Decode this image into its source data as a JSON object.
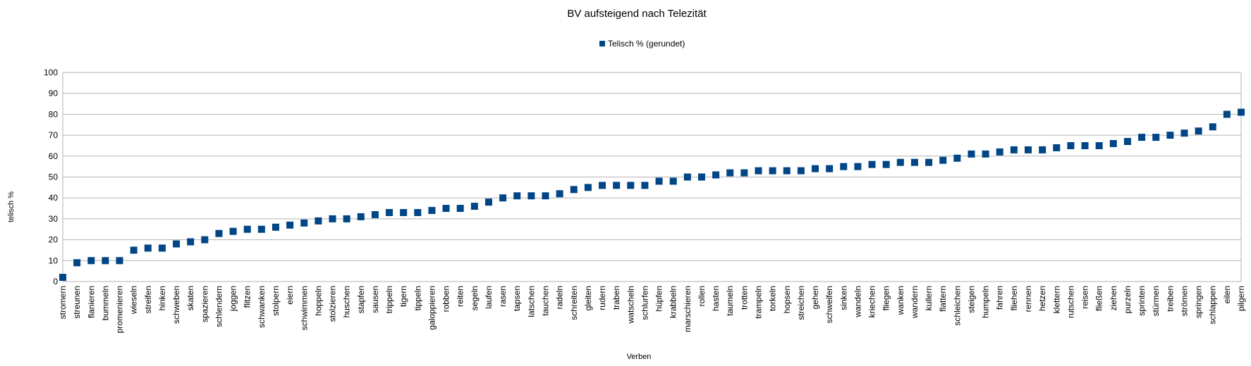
{
  "chart_data": {
    "type": "scatter",
    "title": "BV aufsteigend nach Telezität",
    "xlabel": "Verben",
    "ylabel": "telisch %",
    "ylim": [
      0,
      100
    ],
    "yticks": [
      0,
      10,
      20,
      30,
      40,
      50,
      60,
      70,
      80,
      90,
      100
    ],
    "grid": true,
    "legend_position": "top-center",
    "series": [
      {
        "name": "Telisch % (gerundet)",
        "color": "#004586",
        "marker": "square",
        "points": [
          {
            "x": "stromern",
            "y": 2
          },
          {
            "x": "streunen",
            "y": 9
          },
          {
            "x": "flanieren",
            "y": 10
          },
          {
            "x": "bummeln",
            "y": 10
          },
          {
            "x": "promenieren",
            "y": 10
          },
          {
            "x": "wieseln",
            "y": 15
          },
          {
            "x": "streifen",
            "y": 16
          },
          {
            "x": "hinken",
            "y": 16
          },
          {
            "x": "schweben",
            "y": 18
          },
          {
            "x": "skaten",
            "y": 19
          },
          {
            "x": "spazieren",
            "y": 20
          },
          {
            "x": "schlendern",
            "y": 23
          },
          {
            "x": "joggen",
            "y": 24
          },
          {
            "x": "flitzen",
            "y": 25
          },
          {
            "x": "schwanken",
            "y": 25
          },
          {
            "x": "stolpern",
            "y": 26
          },
          {
            "x": "eiern",
            "y": 27
          },
          {
            "x": "schwimmen",
            "y": 28
          },
          {
            "x": "hoppeln",
            "y": 29
          },
          {
            "x": "stolzieren",
            "y": 30
          },
          {
            "x": "huschen",
            "y": 30
          },
          {
            "x": "stapfen",
            "y": 31
          },
          {
            "x": "sausen",
            "y": 32
          },
          {
            "x": "trippeln",
            "y": 33
          },
          {
            "x": "tigern",
            "y": 33
          },
          {
            "x": "tippeln",
            "y": 33
          },
          {
            "x": "galoppieren",
            "y": 34
          },
          {
            "x": "robben",
            "y": 35
          },
          {
            "x": "reiten",
            "y": 35
          },
          {
            "x": "segeln",
            "y": 36
          },
          {
            "x": "laufen",
            "y": 38
          },
          {
            "x": "rasen",
            "y": 40
          },
          {
            "x": "tapsen",
            "y": 41
          },
          {
            "x": "latschen",
            "y": 41
          },
          {
            "x": "tauchen",
            "y": 41
          },
          {
            "x": "radeln",
            "y": 42
          },
          {
            "x": "schreiten",
            "y": 44
          },
          {
            "x": "gleiten",
            "y": 45
          },
          {
            "x": "rudern",
            "y": 46
          },
          {
            "x": "traben",
            "y": 46
          },
          {
            "x": "watscheln",
            "y": 46
          },
          {
            "x": "schlurfen",
            "y": 46
          },
          {
            "x": "hüpfen",
            "y": 48
          },
          {
            "x": "krabbeln",
            "y": 48
          },
          {
            "x": "marschieren",
            "y": 50
          },
          {
            "x": "rollen",
            "y": 50
          },
          {
            "x": "hasten",
            "y": 51
          },
          {
            "x": "taumeln",
            "y": 52
          },
          {
            "x": "trotten",
            "y": 52
          },
          {
            "x": "trampeln",
            "y": 53
          },
          {
            "x": "torkeln",
            "y": 53
          },
          {
            "x": "hopsen",
            "y": 53
          },
          {
            "x": "streichen",
            "y": 53
          },
          {
            "x": "gehen",
            "y": 54
          },
          {
            "x": "schweifen",
            "y": 54
          },
          {
            "x": "sinken",
            "y": 55
          },
          {
            "x": "wandeln",
            "y": 55
          },
          {
            "x": "kriechen",
            "y": 56
          },
          {
            "x": "fliegen",
            "y": 56
          },
          {
            "x": "wanken",
            "y": 57
          },
          {
            "x": "wandern",
            "y": 57
          },
          {
            "x": "kullern",
            "y": 57
          },
          {
            "x": "flattern",
            "y": 58
          },
          {
            "x": "schleichen",
            "y": 59
          },
          {
            "x": "steigen",
            "y": 61
          },
          {
            "x": "humpeln",
            "y": 61
          },
          {
            "x": "fahren",
            "y": 62
          },
          {
            "x": "fliehen",
            "y": 63
          },
          {
            "x": "rennen",
            "y": 63
          },
          {
            "x": "hetzen",
            "y": 63
          },
          {
            "x": "klettern",
            "y": 64
          },
          {
            "x": "rutschen",
            "y": 65
          },
          {
            "x": "reisen",
            "y": 65
          },
          {
            "x": "fließen",
            "y": 65
          },
          {
            "x": "ziehen",
            "y": 66
          },
          {
            "x": "purzeln",
            "y": 67
          },
          {
            "x": "sprinten",
            "y": 69
          },
          {
            "x": "stürmen",
            "y": 69
          },
          {
            "x": "treiben",
            "y": 70
          },
          {
            "x": "strömen",
            "y": 71
          },
          {
            "x": "springen",
            "y": 72
          },
          {
            "x": "schlappen",
            "y": 74
          },
          {
            "x": "eilen",
            "y": 80
          },
          {
            "x": "pilgern",
            "y": 81
          }
        ]
      }
    ]
  }
}
